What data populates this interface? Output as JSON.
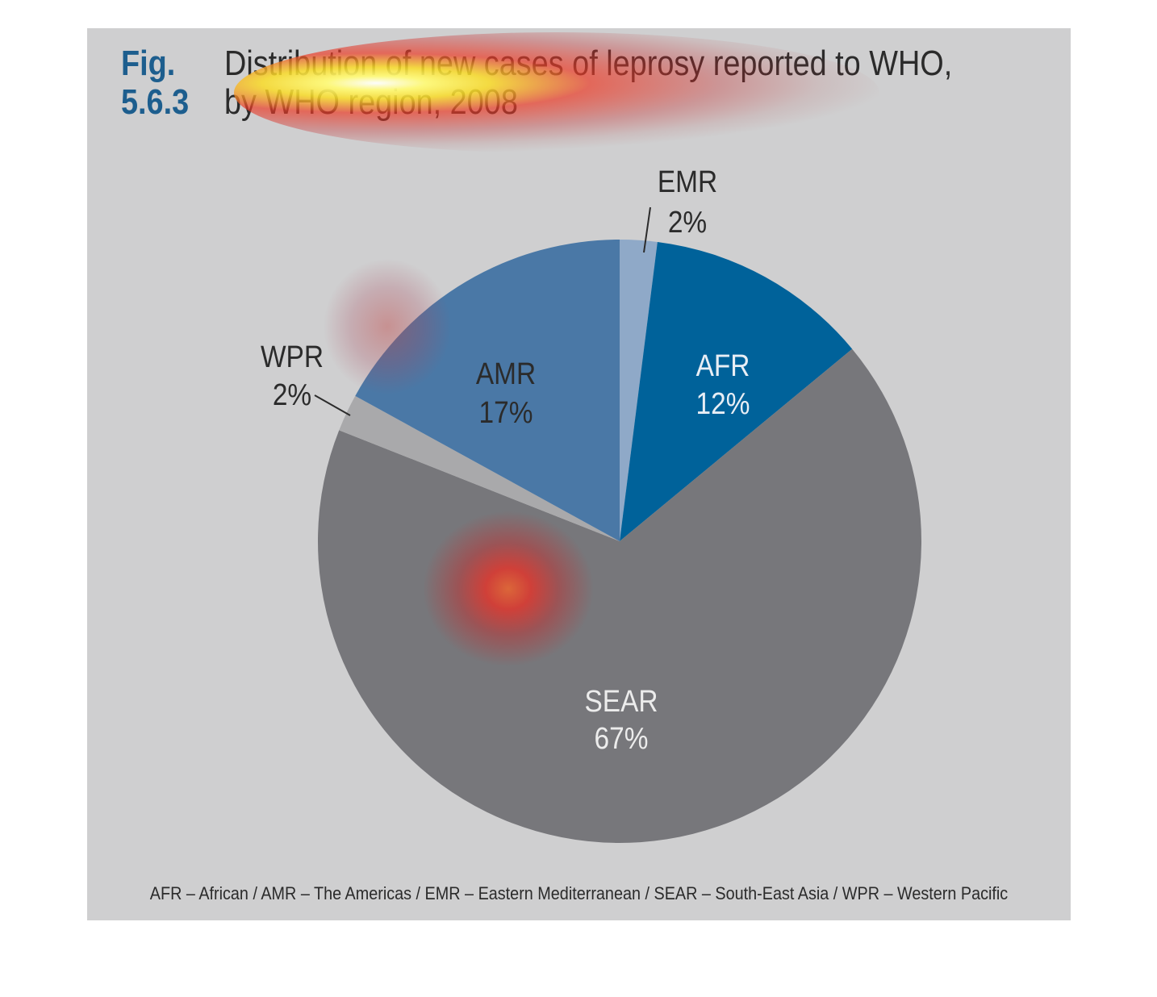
{
  "figure": {
    "number": "Fig. 5.6.3",
    "title_line1": "Distribution of new cases of leprosy reported to WHO,",
    "title_line2": "by WHO region, 2008"
  },
  "footnote": "AFR – African / AMR – The Americas / EMR – Eastern Mediterranean / SEAR – South-East Asia / WPR – Western Pacific",
  "chart_data": {
    "type": "pie",
    "title": "Distribution of new cases of leprosy reported to WHO, by WHO region, 2008",
    "slices": [
      {
        "label": "EMR",
        "value": 2,
        "display": "2%",
        "color": "#8fa9c8"
      },
      {
        "label": "AFR",
        "value": 12,
        "display": "12%",
        "color": "#00629a"
      },
      {
        "label": "SEAR",
        "value": 67,
        "display": "67%",
        "color": "#77777b"
      },
      {
        "label": "WPR",
        "value": 2,
        "display": "2%",
        "color": "#a9a9ab"
      },
      {
        "label": "AMR",
        "value": 17,
        "display": "17%",
        "color": "#4a78a6"
      }
    ],
    "start_angle": "top, clockwise",
    "legend": "none (labels on slices)"
  }
}
